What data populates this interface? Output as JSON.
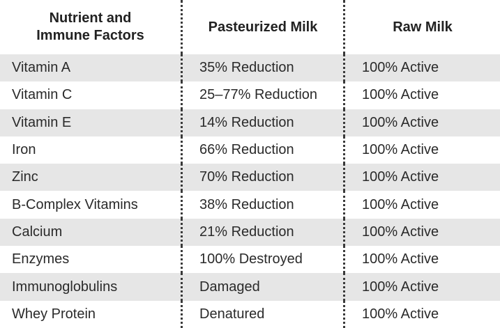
{
  "table": {
    "header": [
      "Nutrient and Immune Factors",
      "Pasteurized Milk",
      "Raw Milk"
    ],
    "rows": [
      [
        "Vitamin A",
        "35% Reduction",
        "100% Active"
      ],
      [
        "Vitamin C",
        "25–77% Reduction",
        "100% Active"
      ],
      [
        "Vitamin E",
        "14% Reduction",
        "100% Active"
      ],
      [
        "Iron",
        "66% Reduction",
        "100% Active"
      ],
      [
        "Zinc",
        "70% Reduction",
        "100% Active"
      ],
      [
        "B-Complex Vitamins",
        "38% Reduction",
        "100% Active"
      ],
      [
        "Calcium",
        "21% Reduction",
        "100% Active"
      ],
      [
        "Enzymes",
        "100% Destroyed",
        "100% Active"
      ],
      [
        "Immunoglobulins",
        "Damaged",
        "100% Active"
      ],
      [
        "Whey Protein",
        "Denatured",
        "100% Active"
      ]
    ]
  }
}
